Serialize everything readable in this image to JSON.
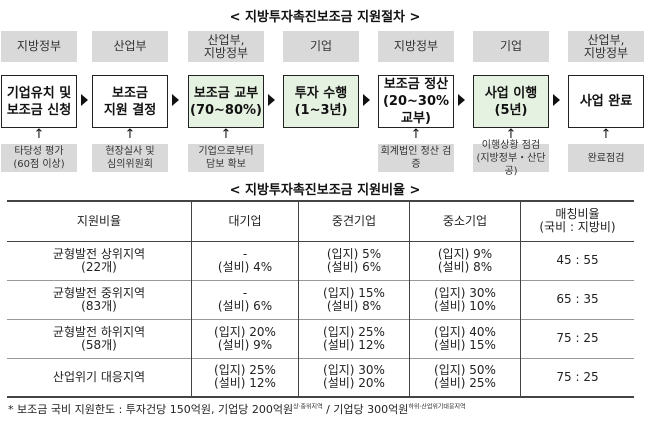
{
  "procedure": {
    "title": "< 지방투자촉진보조금 지원절차 >",
    "steps": [
      {
        "actor": "지방정부",
        "step": "기업유치 및\n보조금 신청",
        "highlight": false,
        "note": "타당성 평가\n(60점 이상)"
      },
      {
        "actor": "산업부",
        "step": "보조금\n지원 결정",
        "highlight": false,
        "note": "현장실사 및\n심의위원회"
      },
      {
        "actor": "산업부,\n지방정부",
        "step": "보조금 교부\n(70~80%)",
        "highlight": true,
        "note": "기업으로부터\n담보 확보"
      },
      {
        "actor": "기업",
        "step": "투자 수행\n(1~3년)",
        "highlight": true,
        "note": ""
      },
      {
        "actor": "지방정부",
        "step": "보조금 정산\n(20~30%\n교부)",
        "highlight": false,
        "note": "회계법인 정산 검증"
      },
      {
        "actor": "기업",
        "step": "사업 이행\n(5년)",
        "highlight": true,
        "note": "이행상황 점검\n(지방정부・산단공)"
      },
      {
        "actor": "산업부,\n지방정부",
        "step": "사업 완료",
        "highlight": false,
        "note": "완료점검"
      }
    ],
    "arrow_up": "↑"
  },
  "ratio": {
    "title": "< 지방투자촉진보조금 지원비율 >",
    "headers": [
      "지원비율",
      "대기업",
      "중견기업",
      "중소기업",
      "매칭비율\n(국비 : 지방비)"
    ],
    "rows": [
      [
        "균형발전 상위지역\n(22개)",
        "-\n(설비)   4%",
        "(입지) 5%\n(설비) 6%",
        "(입지)   9%\n(설비)   8%",
        "45 : 55"
      ],
      [
        "균형발전 중위지역\n(83개)",
        "-\n(설비)   6%",
        "(입지) 15%\n(설비)   8%",
        "(입지) 30%\n(설비) 10%",
        "65 : 35"
      ],
      [
        "균형발전 하위지역\n(58개)",
        "(입지) 20%\n(설비)   9%",
        "(입지) 25%\n(설비) 12%",
        "(입지) 40%\n(설비) 15%",
        "75 : 25"
      ],
      [
        "산업위기 대응지역",
        "(입지) 25%\n(설비) 12%",
        "(입지) 30%\n(설비) 20%",
        "(입지) 50%\n(설비) 25%",
        "75 : 25"
      ]
    ],
    "footnote": {
      "main": "* 보조금 국비 지원한도 : 투자건당 150억원, 기업당 200억원",
      "sup1": "상·중위지역",
      "mid": " / 기업당 300억원",
      "sup2": "하위·산업위기대응지역"
    }
  },
  "colors": {
    "actor_bg": "#d9d9d9",
    "highlight_bg": "#e6f2e1"
  }
}
